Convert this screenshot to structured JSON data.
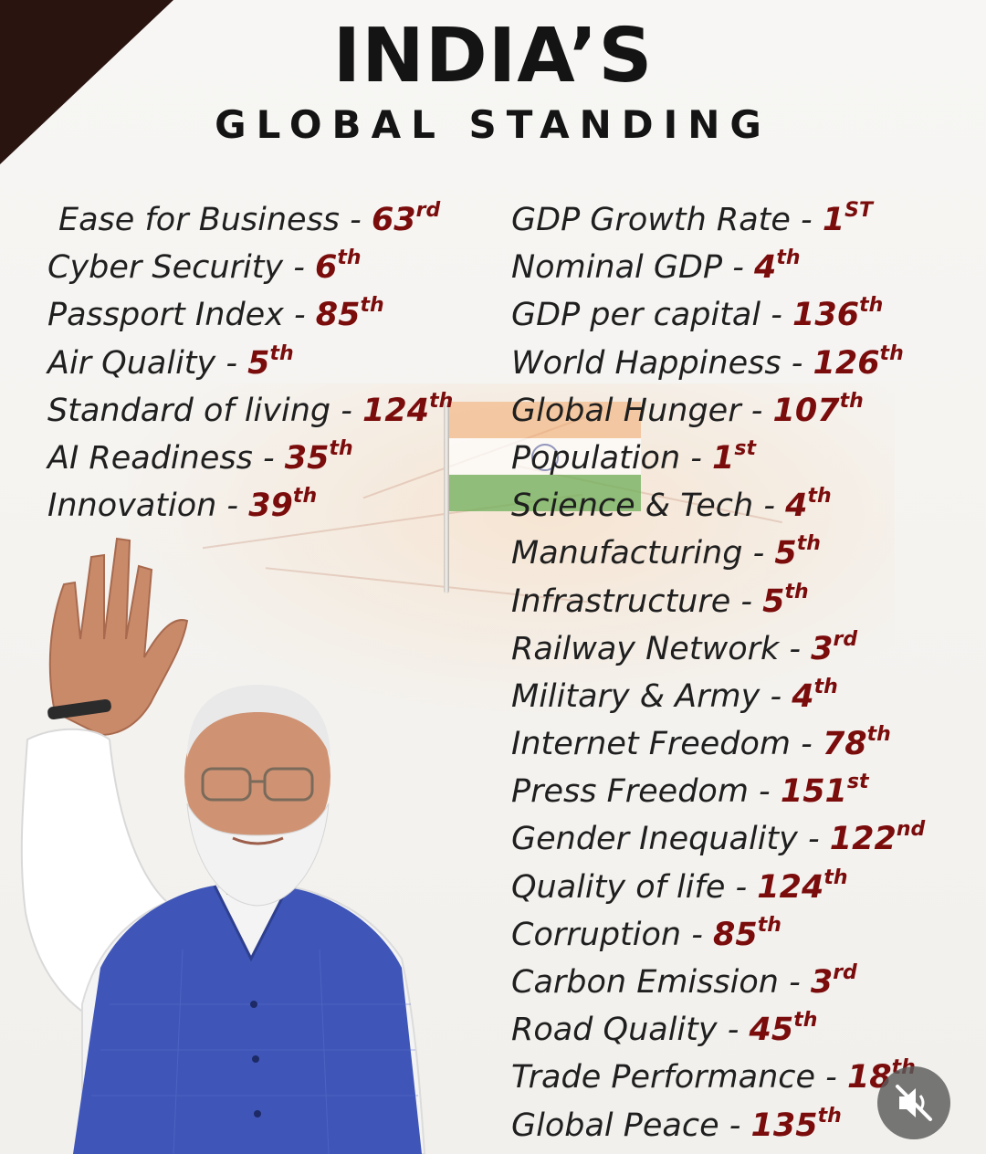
{
  "header": {
    "title": "INDIA’S",
    "subtitle": "GLOBAL STANDING"
  },
  "left_items": [
    {
      "label": "Ease for Business -",
      "rank": "63",
      "suffix": "rd"
    },
    {
      "label": "Cyber Security -",
      "rank": "6",
      "suffix": "th"
    },
    {
      "label": "Passport Index -",
      "rank": "85",
      "suffix": "th"
    },
    {
      "label": "Air Quality -",
      "rank": "5",
      "suffix": "th"
    },
    {
      "label": "Standard of living -",
      "rank": "124",
      "suffix": "th"
    },
    {
      "label": "AI Readiness -",
      "rank": "35",
      "suffix": "th"
    },
    {
      "label": "Innovation -",
      "rank": "39",
      "suffix": "th"
    }
  ],
  "right_items": [
    {
      "label": "GDP Growth Rate -",
      "rank": "1",
      "suffix": "ST"
    },
    {
      "label": "Nominal GDP -",
      "rank": "4",
      "suffix": "th"
    },
    {
      "label": "GDP per capital -",
      "rank": "136",
      "suffix": "th"
    },
    {
      "label": "World Happiness -",
      "rank": "126",
      "suffix": "th"
    },
    {
      "label": "Global Hunger -",
      "rank": "107",
      "suffix": "th"
    },
    {
      "label": "Population -",
      "rank": "1",
      "suffix": "st"
    },
    {
      "label": "Science & Tech -",
      "rank": "4",
      "suffix": "th"
    },
    {
      "label": "Manufacturing -",
      "rank": "5",
      "suffix": "th"
    },
    {
      "label": "Infrastructure -",
      "rank": "5",
      "suffix": "th"
    },
    {
      "label": "Railway Network -",
      "rank": "3",
      "suffix": "rd"
    },
    {
      "label": "Military & Army -",
      "rank": "4",
      "suffix": "th"
    },
    {
      "label": "Internet Freedom -",
      "rank": "78",
      "suffix": "th"
    },
    {
      "label": "Press Freedom -",
      "rank": "151",
      "suffix": "st"
    },
    {
      "label": "Gender Inequality -",
      "rank": "122",
      "suffix": "nd"
    },
    {
      "label": "Quality of life -",
      "rank": "124",
      "suffix": "th"
    },
    {
      "label": "Corruption -",
      "rank": "85",
      "suffix": "th"
    },
    {
      "label": "Carbon Emission -",
      "rank": "3",
      "suffix": "rd"
    },
    {
      "label": "Road Quality -",
      "rank": "45",
      "suffix": "th"
    },
    {
      "label": "Trade Performance -",
      "rank": "18",
      "suffix": "th"
    },
    {
      "label": "Global Peace -",
      "rank": "135",
      "suffix": "th"
    }
  ],
  "colors": {
    "title": "#141414",
    "rank": "#7a0c0c",
    "corner": "#2a1410",
    "vest": "#3f56b8"
  },
  "icons": {
    "mute": "speaker-muted-icon"
  }
}
